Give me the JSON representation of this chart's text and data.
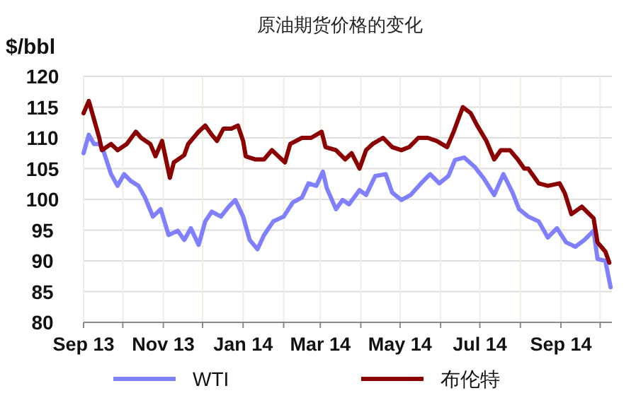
{
  "chart_data": {
    "type": "line",
    "title": "原油期货价格的变化",
    "ylabel": "$/bbl",
    "xlim": [
      "2013-09-01",
      "2014-10-10"
    ],
    "ylim": [
      80,
      120
    ],
    "yticks": [
      80,
      85,
      90,
      95,
      100,
      105,
      110,
      115,
      120
    ],
    "xticks": [
      {
        "value": "2013-09-01",
        "label": "Sep 13"
      },
      {
        "value": "2013-10-01",
        "label": null
      },
      {
        "value": "2013-11-01",
        "label": "Nov 13"
      },
      {
        "value": "2013-12-01",
        "label": null
      },
      {
        "value": "2014-01-01",
        "label": "Jan 14"
      },
      {
        "value": "2014-02-01",
        "label": null
      },
      {
        "value": "2014-03-01",
        "label": "Mar 14"
      },
      {
        "value": "2014-04-01",
        "label": null
      },
      {
        "value": "2014-05-01",
        "label": "May 14"
      },
      {
        "value": "2014-06-01",
        "label": null
      },
      {
        "value": "2014-07-01",
        "label": "Jul 14"
      },
      {
        "value": "2014-08-01",
        "label": null
      },
      {
        "value": "2014-09-01",
        "label": "Sep 14"
      },
      {
        "value": "2014-10-01",
        "label": null
      }
    ],
    "grid": true,
    "legend": "bottom",
    "marker": "none",
    "line_style": "solid",
    "series": [
      {
        "name": "WTI",
        "color": "#8080ff",
        "x": [
          "2013-09-01",
          "2013-09-05",
          "2013-09-09",
          "2013-09-13",
          "2013-09-16",
          "2013-09-22",
          "2013-09-27",
          "2013-10-02",
          "2013-10-07",
          "2013-10-13",
          "2013-10-18",
          "2013-10-24",
          "2013-10-30",
          "2013-11-05",
          "2013-11-12",
          "2013-11-17",
          "2013-11-22",
          "2013-11-28",
          "2013-12-03",
          "2013-12-08",
          "2013-12-15",
          "2013-12-21",
          "2013-12-26",
          "2014-01-01",
          "2014-01-06",
          "2014-01-12",
          "2014-01-17",
          "2014-01-24",
          "2014-02-01",
          "2014-02-08",
          "2014-02-15",
          "2014-02-20",
          "2014-02-26",
          "2014-03-03",
          "2014-03-06",
          "2014-03-13",
          "2014-03-18",
          "2014-03-23",
          "2014-03-31",
          "2014-04-05",
          "2014-04-12",
          "2014-04-20",
          "2014-04-25",
          "2014-05-02",
          "2014-05-09",
          "2014-05-17",
          "2014-05-24",
          "2014-05-31",
          "2014-06-07",
          "2014-06-12",
          "2014-06-19",
          "2014-06-27",
          "2014-07-04",
          "2014-07-12",
          "2014-07-19",
          "2014-07-26",
          "2014-07-31",
          "2014-08-07",
          "2014-08-15",
          "2014-08-22",
          "2014-08-29",
          "2014-09-05",
          "2014-09-12",
          "2014-09-19",
          "2014-09-26",
          "2014-09-29",
          "2014-10-05",
          "2014-10-09"
        ],
        "values": [
          107.5,
          110.5,
          109,
          109,
          108,
          104.1,
          102.2,
          104.1,
          103,
          102.2,
          100.3,
          97.2,
          98.4,
          94.2,
          94.9,
          93.4,
          95.3,
          92.6,
          96.4,
          98,
          97.2,
          98.8,
          99.9,
          97.2,
          93.4,
          91.9,
          94.2,
          96.4,
          97.2,
          99.5,
          100.3,
          102.6,
          102.2,
          104.5,
          101.8,
          98.4,
          99.9,
          99.2,
          101.5,
          100.7,
          103.8,
          104.1,
          101.1,
          99.9,
          100.7,
          102.6,
          104.1,
          102.6,
          103.8,
          106.4,
          106.8,
          105.3,
          103.4,
          100.7,
          104.1,
          101.1,
          98.4,
          97.2,
          96.4,
          93.8,
          95.3,
          93,
          92.3,
          93.4,
          94.9,
          90.3,
          90,
          85.7
        ]
      },
      {
        "name": "布伦特",
        "color": "#8b0000",
        "x": [
          "2013-09-01",
          "2013-09-05",
          "2013-09-09",
          "2013-09-13",
          "2013-09-15",
          "2013-09-22",
          "2013-09-27",
          "2013-10-04",
          "2013-10-11",
          "2013-10-15",
          "2013-10-22",
          "2013-10-26",
          "2013-10-31",
          "2013-11-06",
          "2013-11-09",
          "2013-11-17",
          "2013-11-20",
          "2013-11-28",
          "2013-12-03",
          "2013-12-08",
          "2013-12-12",
          "2013-12-17",
          "2013-12-23",
          "2013-12-28",
          "2014-01-01",
          "2014-01-03",
          "2014-01-10",
          "2014-01-17",
          "2014-01-23",
          "2014-01-28",
          "2014-02-02",
          "2014-02-06",
          "2014-02-15",
          "2014-02-22",
          "2014-03-02",
          "2014-03-05",
          "2014-03-13",
          "2014-03-20",
          "2014-03-25",
          "2014-03-31",
          "2014-04-05",
          "2014-04-10",
          "2014-04-18",
          "2014-04-25",
          "2014-05-02",
          "2014-05-08",
          "2014-05-15",
          "2014-05-22",
          "2014-05-29",
          "2014-06-06",
          "2014-06-11",
          "2014-06-18",
          "2014-06-24",
          "2014-06-29",
          "2014-07-06",
          "2014-07-12",
          "2014-07-17",
          "2014-07-24",
          "2014-07-30",
          "2014-08-04",
          "2014-08-07",
          "2014-08-15",
          "2014-08-22",
          "2014-08-31",
          "2014-09-04",
          "2014-09-09",
          "2014-09-17",
          "2014-09-26",
          "2014-09-29",
          "2014-10-05",
          "2014-10-08"
        ],
        "values": [
          114,
          116,
          113,
          110,
          108,
          109,
          108,
          109,
          111,
          110,
          109,
          107,
          109.5,
          103.5,
          106,
          107.2,
          109,
          111,
          112,
          110.5,
          109.5,
          111.5,
          111.5,
          112,
          109.5,
          107,
          106.5,
          106.5,
          108,
          107,
          106,
          109,
          110,
          110,
          111,
          108.5,
          108,
          106.5,
          107.5,
          105,
          108,
          109,
          110,
          108.5,
          108,
          108.5,
          110,
          110,
          109.5,
          108.5,
          111,
          115,
          114,
          112,
          109.5,
          106.5,
          108,
          108,
          106.5,
          105,
          105,
          102.6,
          102.2,
          102.6,
          101,
          97.6,
          98.8,
          96.9,
          93,
          91.5,
          89.7
        ]
      }
    ]
  }
}
